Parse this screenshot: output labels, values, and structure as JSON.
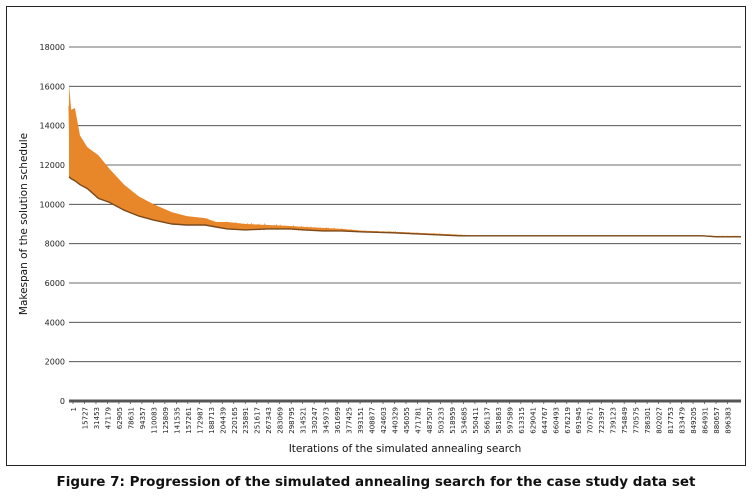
{
  "caption": "Figure 7: Progression of the simulated annealing search for the case study data set",
  "chart_data": {
    "type": "line",
    "title": "",
    "xlabel": "Iterations of the simulated annealing search",
    "ylabel": "Makespan of the solution schedule",
    "ylim": [
      0,
      18000
    ],
    "xlim": [
      1,
      913000
    ],
    "yticks": [
      0,
      2000,
      4000,
      6000,
      8000,
      10000,
      12000,
      14000,
      16000,
      18000
    ],
    "xtick_labels": [
      "1",
      "15727",
      "31453",
      "47179",
      "62905",
      "78631",
      "94357",
      "110083",
      "125809",
      "141535",
      "157261",
      "172987",
      "188713",
      "204439",
      "220165",
      "235891",
      "251617",
      "267343",
      "283069",
      "298795",
      "314521",
      "330247",
      "345973",
      "361699",
      "377425",
      "393151",
      "408877",
      "424603",
      "440329",
      "456055",
      "471781",
      "487507",
      "503233",
      "518959",
      "534685",
      "550411",
      "566137",
      "581863",
      "597589",
      "613315",
      "629041",
      "644767",
      "660493",
      "676219",
      "691945",
      "707671",
      "723397",
      "739123",
      "754849",
      "770575",
      "786301",
      "802027",
      "817753",
      "833479",
      "849205",
      "864931",
      "880657",
      "896383"
    ],
    "grid": true,
    "legend": "none",
    "series_color": "#e8862a",
    "series_edge_color": "#7a4a1c",
    "series": [
      {
        "x": [
          1,
          3000,
          8000,
          15000,
          25000,
          40000,
          55000,
          75000,
          95000,
          115000,
          140000,
          160000,
          185000,
          200000,
          215000,
          240000,
          270000,
          300000,
          320000,
          345000,
          370000,
          400000,
          440000,
          470000,
          500000,
          530000,
          550000,
          600000,
          700000,
          800000,
          860000,
          880000,
          913000
        ],
        "y_max": [
          16100,
          14800,
          14900,
          13500,
          12900,
          12500,
          11800,
          11000,
          10400,
          10000,
          9600,
          9400,
          9300,
          9100,
          9100,
          9000,
          8950,
          8900,
          8850,
          8800,
          8750,
          8650,
          8600,
          8550,
          8500,
          8450,
          8400,
          8400,
          8400,
          8400,
          8400,
          8380,
          8380
        ],
        "y_min": [
          11400,
          11300,
          11200,
          11000,
          10800,
          10300,
          10100,
          9700,
          9400,
          9200,
          9000,
          8950,
          8950,
          8850,
          8750,
          8700,
          8750,
          8750,
          8700,
          8650,
          8650,
          8600,
          8550,
          8500,
          8450,
          8400,
          8400,
          8400,
          8400,
          8400,
          8400,
          8350,
          8350
        ]
      }
    ]
  }
}
